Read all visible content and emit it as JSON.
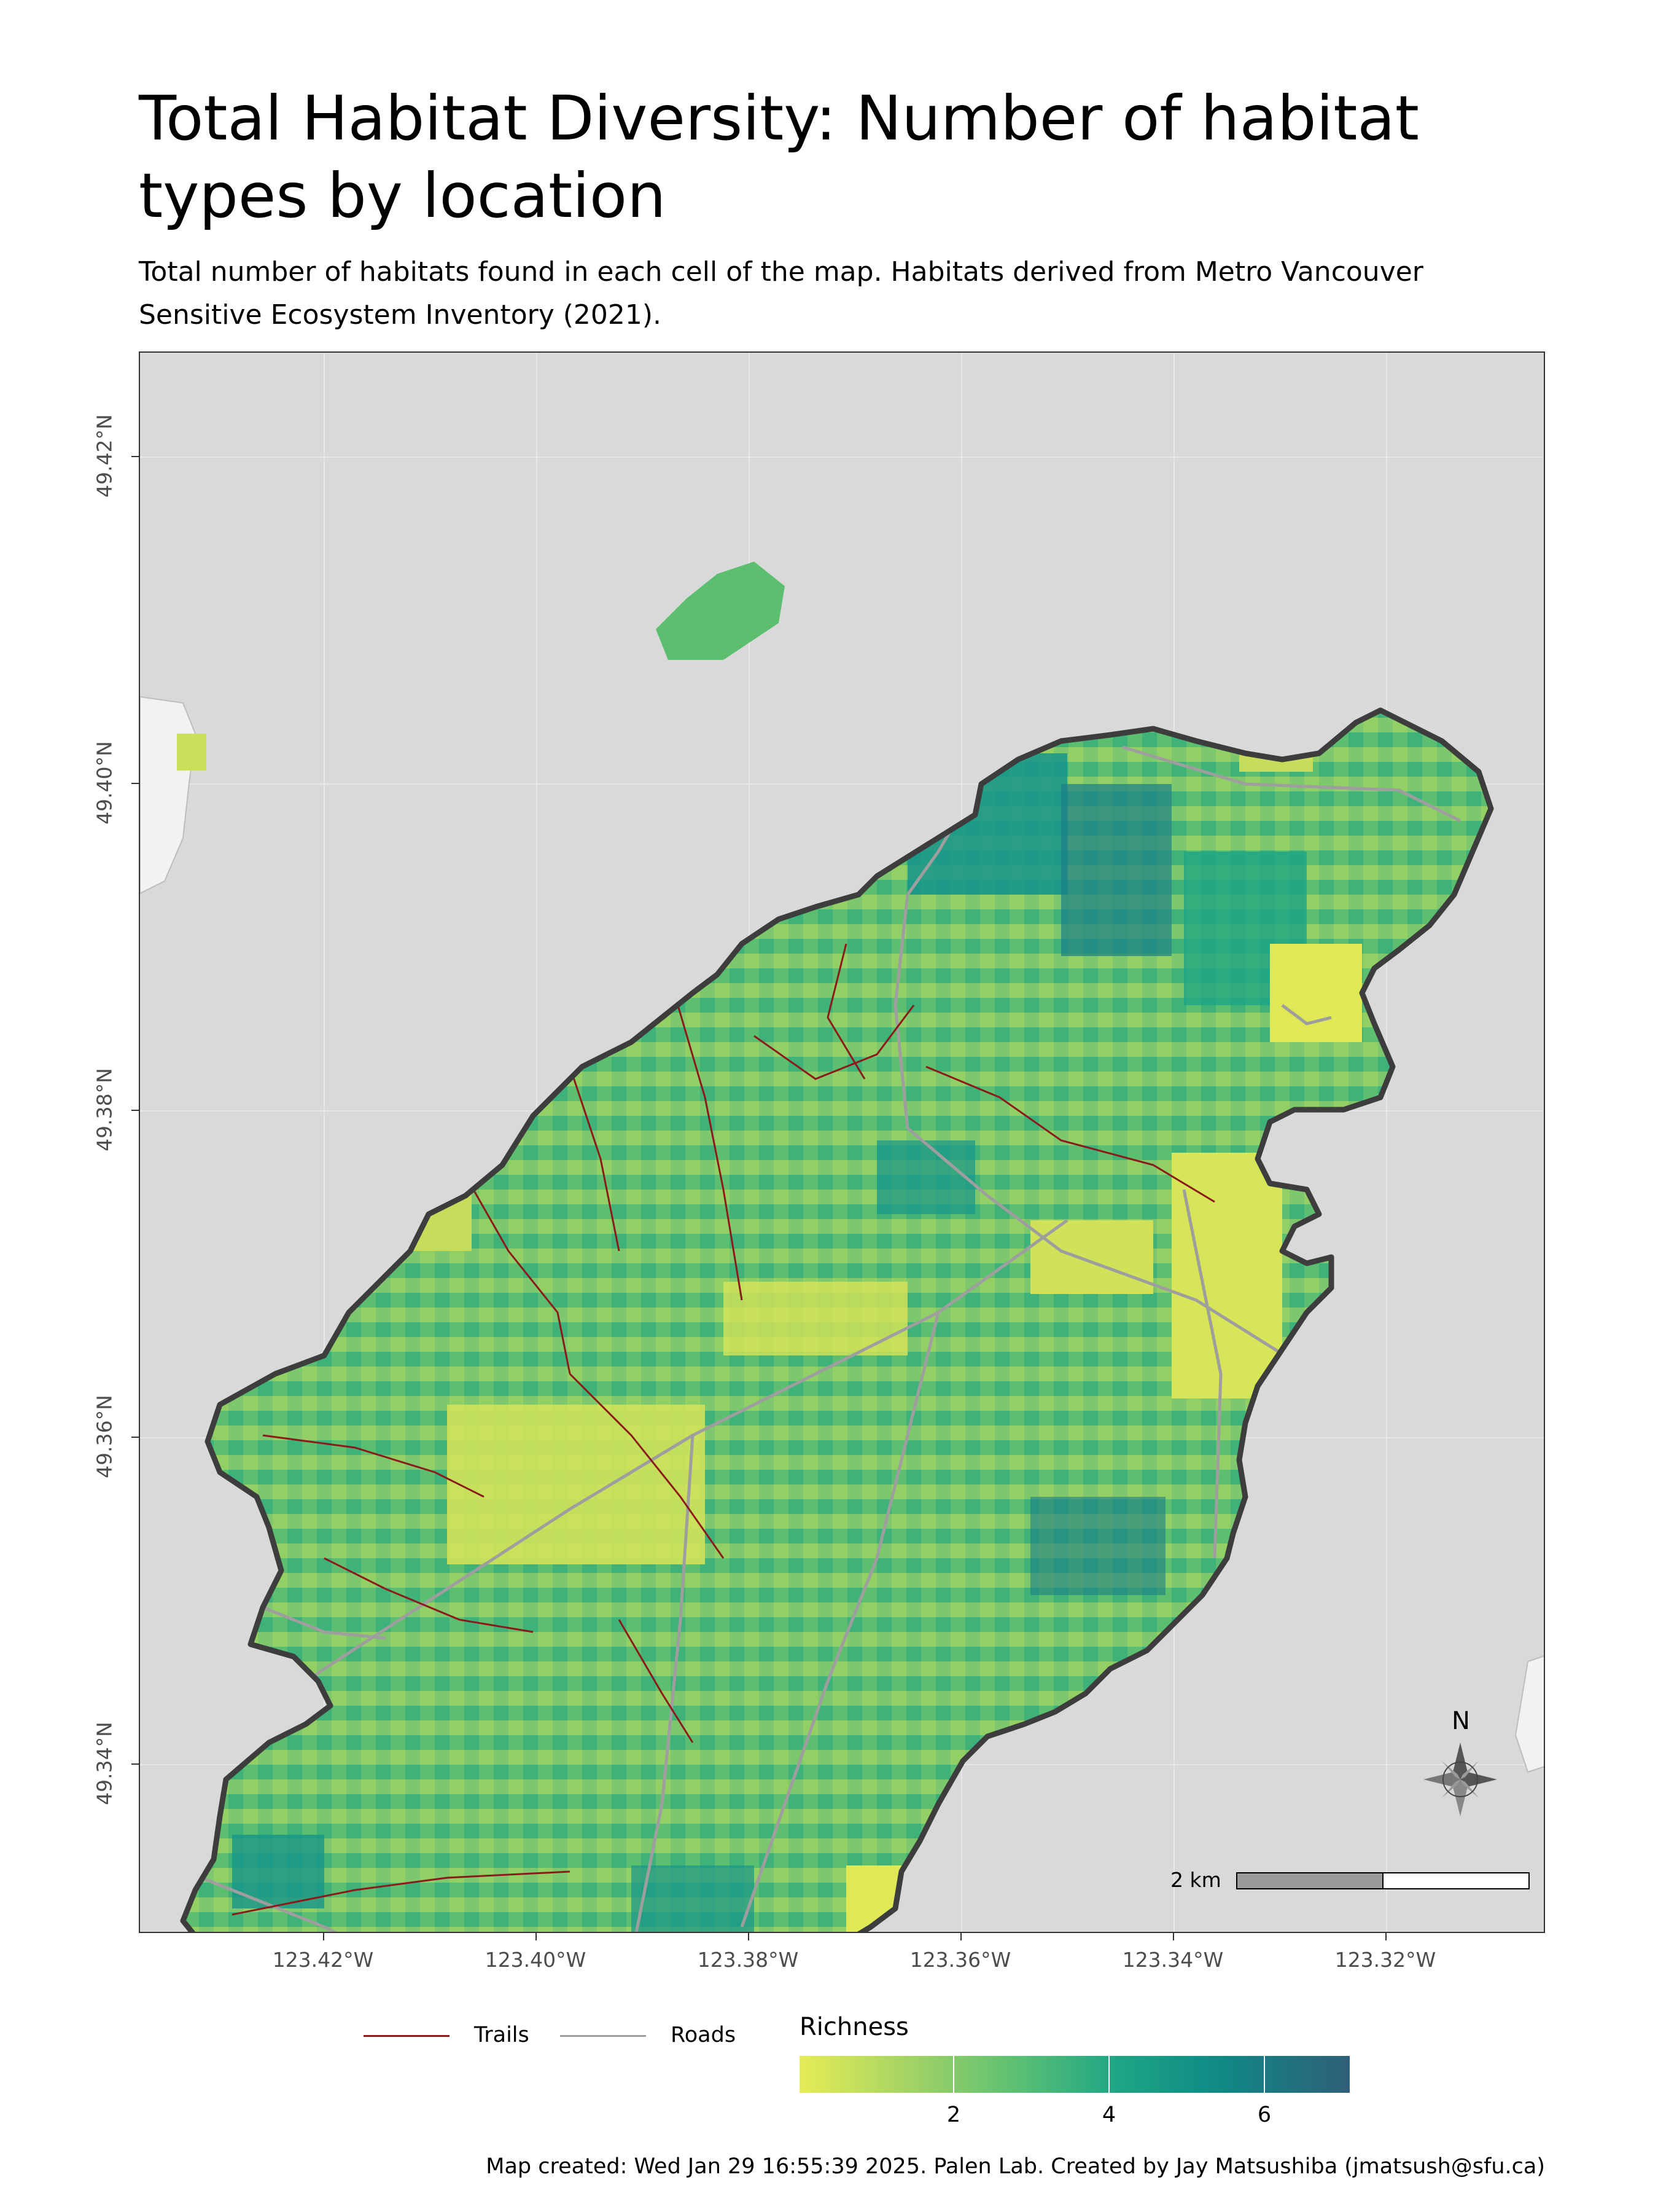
{
  "title": "Total Habitat Diversity: Number of habitat types by location",
  "subtitle": "Total number of habitats found in each cell of the map. Habitats derived from Metro Vancouver Sensitive Ecosystem Inventory (2021).",
  "map": {
    "x_ticks": [
      "123.42°W",
      "123.40°W",
      "123.38°W",
      "123.36°W",
      "123.34°W",
      "123.32°W"
    ],
    "y_ticks": [
      "49.42°N",
      "49.40°N",
      "49.38°N",
      "49.36°N",
      "49.34°N"
    ],
    "scalebar_label": "2 km",
    "north_label": "N",
    "colors": {
      "water": "#d9d9d9",
      "island_outline": "#3d3d3d",
      "trails": "#8b1a1a",
      "roads": "#9e9e9e"
    },
    "icons": [
      "north-arrow-compass-icon"
    ]
  },
  "legend": {
    "trails_label": "Trails",
    "roads_label": "Roads",
    "richness_title": "Richness",
    "richness_ticks": [
      "2",
      "4",
      "6"
    ]
  },
  "caption": "Map created: Wed Jan 29 16:55:39 2025. Palen Lab. Created by Jay Matsushiba (jmatsush@sfu.ca)"
}
